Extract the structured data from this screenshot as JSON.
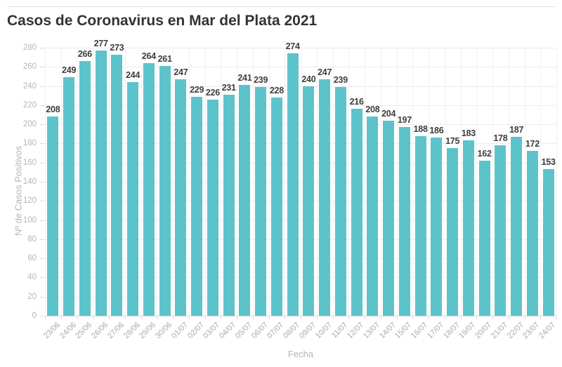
{
  "page": {
    "title": "Casos de Coronavirus en Mar del Plata 2021"
  },
  "chart_data": {
    "type": "bar",
    "title": "Casos de Coronavirus en Mar del Plata 2021",
    "xlabel": "Fecha",
    "ylabel": "Nº de Casos Positivos",
    "ylim": [
      0,
      280
    ],
    "ytick_step": 20,
    "grid": true,
    "legend": false,
    "categories": [
      "23/06",
      "24/06",
      "25/06",
      "26/06",
      "27/06",
      "28/06",
      "29/06",
      "30/06",
      "01/07",
      "02/07",
      "03/07",
      "04/07",
      "05/07",
      "06/07",
      "07/07",
      "08/07",
      "09/07",
      "10/07",
      "11/07",
      "12/07",
      "13/07",
      "14/07",
      "15/07",
      "16/07",
      "17/07",
      "18/07",
      "19/07",
      "20/07",
      "21/07",
      "22/07",
      "23/07",
      "24/07"
    ],
    "values": [
      208,
      249,
      266,
      277,
      273,
      244,
      264,
      261,
      247,
      229,
      226,
      231,
      241,
      239,
      228,
      274,
      240,
      247,
      239,
      216,
      208,
      204,
      197,
      188,
      186,
      175,
      183,
      162,
      178,
      187,
      172,
      153
    ],
    "colors": {
      "bar": "#5CC3CB",
      "value_label": "#3d3d3d",
      "axis_text": "#b4b4b4",
      "grid": "#ececec",
      "title": "#333333"
    }
  }
}
